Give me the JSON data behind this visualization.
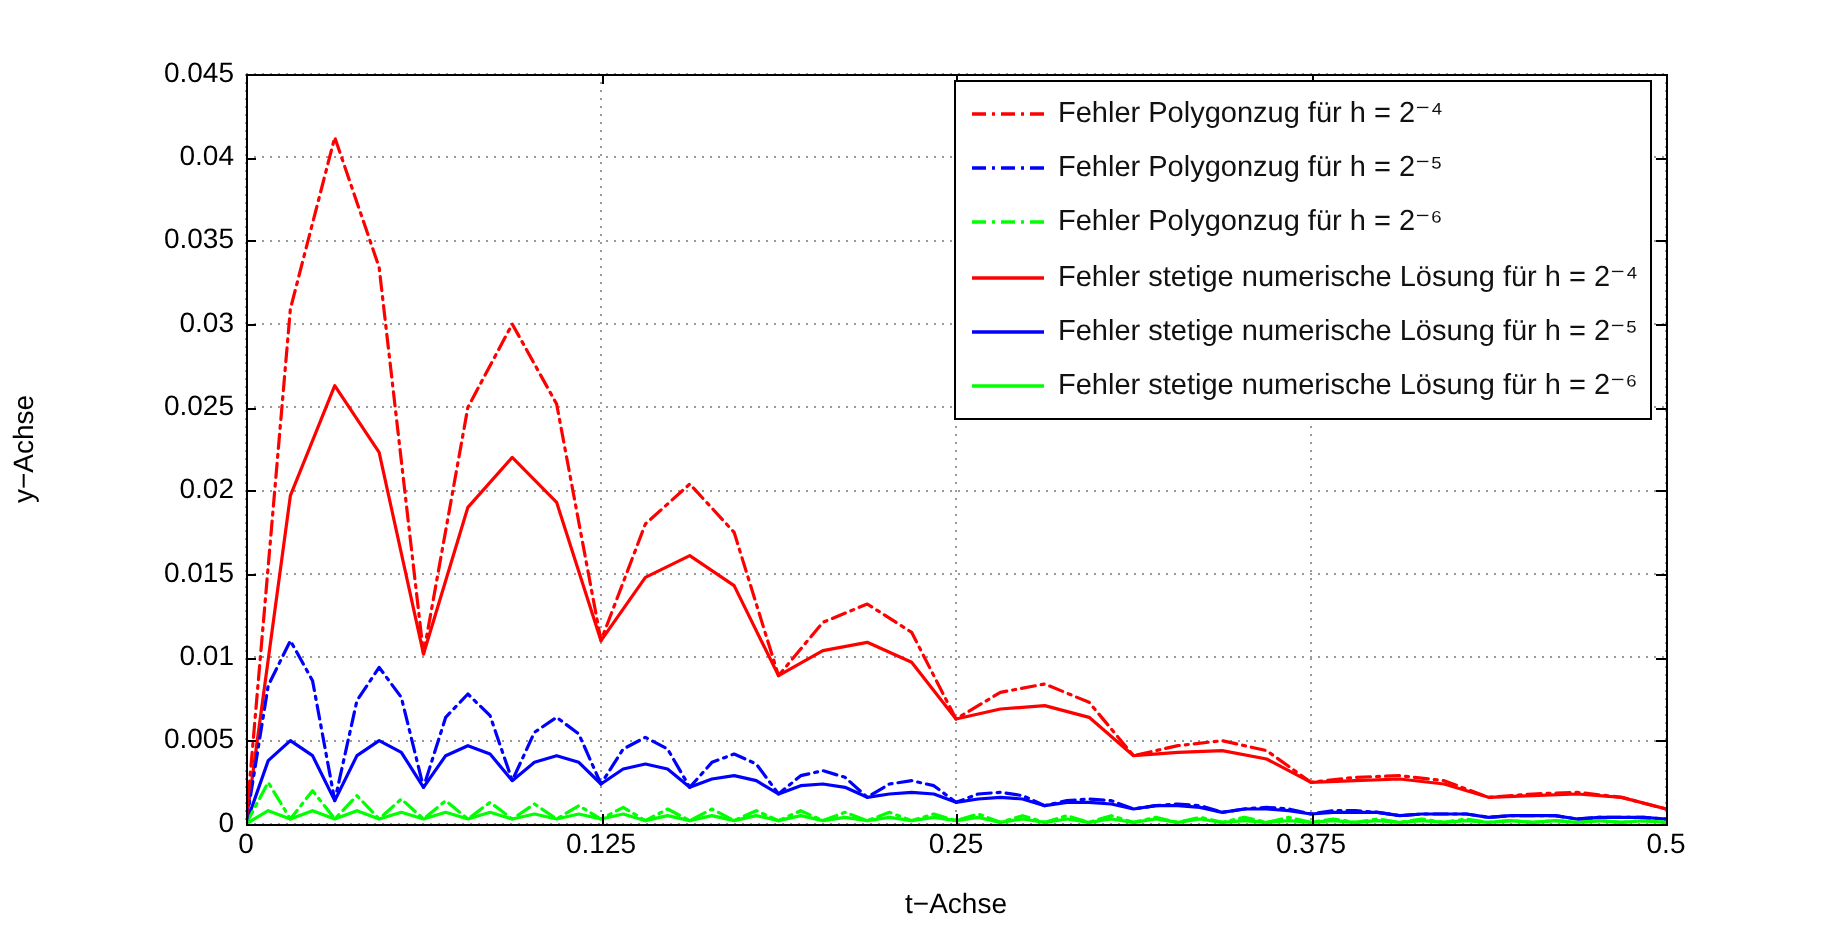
{
  "chart_data": {
    "type": "line",
    "xlabel": "t−Achse",
    "ylabel": "y−Achse",
    "xlim": [
      0,
      0.5
    ],
    "xticks": [
      0,
      0.125,
      0.25,
      0.375,
      0.5
    ],
    "ylim": [
      0,
      0.045
    ],
    "yticks": [
      0,
      0.005,
      0.01,
      0.015,
      0.02,
      0.025,
      0.03,
      0.035,
      0.04,
      0.045
    ],
    "grid": true,
    "legend": "top right",
    "marker": "none",
    "x": [
      0,
      0.0078125,
      0.015625,
      0.0234375,
      0.03125,
      0.0390625,
      0.046875,
      0.0546875,
      0.0625,
      0.0703125,
      0.078125,
      0.0859375,
      0.09375,
      0.1015625,
      0.109375,
      0.1171875,
      0.125,
      0.1328125,
      0.140625,
      0.1484375,
      0.15625,
      0.1640625,
      0.171875,
      0.1796875,
      0.1875,
      0.1953125,
      0.203125,
      0.2109375,
      0.21875,
      0.2265625,
      0.234375,
      0.2421875,
      0.25,
      0.2578125,
      0.265625,
      0.2734375,
      0.28125,
      0.2890625,
      0.296875,
      0.3046875,
      0.3125,
      0.3203125,
      0.328125,
      0.3359375,
      0.34375,
      0.3515625,
      0.359375,
      0.3671875,
      0.375,
      0.3828125,
      0.390625,
      0.3984375,
      0.40625,
      0.4140625,
      0.421875,
      0.4296875,
      0.4375,
      0.4453125,
      0.453125,
      0.4609375,
      0.46875,
      0.4765625,
      0.484375,
      0.4921875,
      0.5
    ],
    "series": [
      {
        "name": "Fehler Polygonzug für h = 2⁻⁴",
        "color": "#ff0000",
        "line_style": "dashdot",
        "x": [
          0,
          0.015625,
          0.03125,
          0.046875,
          0.0625,
          0.078125,
          0.09375,
          0.109375,
          0.125,
          0.140625,
          0.15625,
          0.171875,
          0.1875,
          0.203125,
          0.21875,
          0.234375,
          0.25,
          0.265625,
          0.28125,
          0.296875,
          0.3125,
          0.328125,
          0.34375,
          0.359375,
          0.375,
          0.390625,
          0.40625,
          0.421875,
          0.4375,
          0.453125,
          0.46875,
          0.484375,
          0.5
        ],
        "values": [
          0,
          0.0309,
          0.0412,
          0.0334,
          0.0102,
          0.025,
          0.03,
          0.0252,
          0.011,
          0.018,
          0.0204,
          0.0175,
          0.0089,
          0.0121,
          0.0132,
          0.0115,
          0.0063,
          0.0079,
          0.0084,
          0.0073,
          0.0041,
          0.0047,
          0.005,
          0.0044,
          0.0025,
          0.0028,
          0.0029,
          0.0026,
          0.0016,
          0.0018,
          0.0019,
          0.0016,
          0.0009
        ]
      },
      {
        "name": "Fehler Polygonzug für h = 2⁻⁵",
        "color": "#0000ff",
        "line_style": "dashdot",
        "values": [
          0,
          0.0083,
          0.011,
          0.0086,
          0.0014,
          0.0074,
          0.0094,
          0.0076,
          0.0022,
          0.0064,
          0.0078,
          0.0065,
          0.0026,
          0.0055,
          0.0064,
          0.0054,
          0.0024,
          0.0045,
          0.0052,
          0.0045,
          0.0022,
          0.0037,
          0.0042,
          0.0036,
          0.0018,
          0.0029,
          0.0032,
          0.0028,
          0.0016,
          0.0024,
          0.0026,
          0.0023,
          0.0013,
          0.0018,
          0.0019,
          0.0017,
          0.0011,
          0.0014,
          0.0015,
          0.0014,
          0.0009,
          0.0011,
          0.0012,
          0.0011,
          0.0007,
          0.0009,
          0.001,
          0.0009,
          0.0006,
          0.0008,
          0.0008,
          0.0007,
          0.0005,
          0.0006,
          0.0006,
          0.0006,
          0.0004,
          0.0005,
          0.0005,
          0.0005,
          0.0003,
          0.0004,
          0.0004,
          0.0004,
          0.0003
        ]
      },
      {
        "name": "Fehler Polygonzug für h = 2⁻⁶",
        "color": "#00ff00",
        "line_style": "dashdot",
        "values": [
          0,
          0.0025,
          0.0003,
          0.002,
          0.0003,
          0.0017,
          0.0003,
          0.0015,
          0.0003,
          0.0014,
          0.0003,
          0.0013,
          0.0003,
          0.0012,
          0.0003,
          0.0011,
          0.0003,
          0.001,
          0.0002,
          0.0009,
          0.0002,
          0.0009,
          0.0002,
          0.0008,
          0.0002,
          0.0008,
          0.0002,
          0.0007,
          0.0002,
          0.0007,
          0.0002,
          0.0006,
          0.0002,
          0.0006,
          0.0001,
          0.0005,
          0.0001,
          0.0005,
          0.0001,
          0.0005,
          0.0001,
          0.0004,
          0.0001,
          0.0004,
          0.0001,
          0.0004,
          0.0001,
          0.0004,
          0.0001,
          0.0003,
          0.0001,
          0.0003,
          0.0001,
          0.0003,
          0.0001,
          0.0003,
          0.0001,
          0.0002,
          0.0001,
          0.0002,
          0.0001,
          0.0002,
          0.0001,
          0.0002,
          0.0001
        ]
      },
      {
        "name": "Fehler stetige numerische Lösung für h = 2⁻⁴",
        "color": "#ff0000",
        "line_style": "solid",
        "x": [
          0,
          0.015625,
          0.03125,
          0.046875,
          0.0625,
          0.078125,
          0.09375,
          0.109375,
          0.125,
          0.140625,
          0.15625,
          0.171875,
          0.1875,
          0.203125,
          0.21875,
          0.234375,
          0.25,
          0.265625,
          0.28125,
          0.296875,
          0.3125,
          0.328125,
          0.34375,
          0.359375,
          0.375,
          0.390625,
          0.40625,
          0.421875,
          0.4375,
          0.453125,
          0.46875,
          0.484375,
          0.5
        ],
        "values": [
          0,
          0.0197,
          0.0263,
          0.0223,
          0.0102,
          0.019,
          0.022,
          0.0193,
          0.011,
          0.0148,
          0.0161,
          0.0143,
          0.0089,
          0.0104,
          0.0109,
          0.0097,
          0.0063,
          0.0069,
          0.0071,
          0.0064,
          0.0041,
          0.0043,
          0.0044,
          0.0039,
          0.0025,
          0.0026,
          0.0027,
          0.0024,
          0.0016,
          0.0017,
          0.0018,
          0.0016,
          0.0009
        ]
      },
      {
        "name": "Fehler stetige numerische Lösung für h = 2⁻⁵",
        "color": "#0000ff",
        "line_style": "solid",
        "values": [
          0,
          0.0038,
          0.005,
          0.0041,
          0.0014,
          0.0041,
          0.005,
          0.0043,
          0.0022,
          0.0041,
          0.0047,
          0.0042,
          0.0026,
          0.0037,
          0.0041,
          0.0037,
          0.0024,
          0.0033,
          0.0036,
          0.0033,
          0.0022,
          0.0027,
          0.0029,
          0.0026,
          0.0018,
          0.0023,
          0.0024,
          0.0022,
          0.0016,
          0.0018,
          0.0019,
          0.0018,
          0.0013,
          0.0015,
          0.0016,
          0.0015,
          0.0011,
          0.0013,
          0.0013,
          0.0012,
          0.0009,
          0.0011,
          0.0011,
          0.001,
          0.0007,
          0.0009,
          0.0009,
          0.0008,
          0.0006,
          0.0007,
          0.0007,
          0.0007,
          0.0005,
          0.0006,
          0.0006,
          0.0006,
          0.0004,
          0.0005,
          0.0005,
          0.0005,
          0.0003,
          0.0004,
          0.0004,
          0.0004,
          0.0003
        ]
      },
      {
        "name": "Fehler stetige numerische Lösung für h = 2⁻⁶",
        "color": "#00ff00",
        "line_style": "solid",
        "values": [
          0,
          0.0008,
          0.0003,
          0.0008,
          0.0003,
          0.0008,
          0.0003,
          0.0007,
          0.0003,
          0.0007,
          0.0003,
          0.0007,
          0.0003,
          0.0006,
          0.0003,
          0.0006,
          0.0003,
          0.0006,
          0.0002,
          0.0005,
          0.0002,
          0.0005,
          0.0002,
          0.0005,
          0.0002,
          0.0005,
          0.0002,
          0.0004,
          0.0002,
          0.0004,
          0.0002,
          0.0004,
          0.0002,
          0.0004,
          0.0001,
          0.0003,
          0.0001,
          0.0003,
          0.0001,
          0.0003,
          0.0001,
          0.0003,
          0.0001,
          0.0003,
          0.0001,
          0.0002,
          0.0001,
          0.0002,
          0.0001,
          0.0002,
          0.0001,
          0.0002,
          0.0001,
          0.0002,
          0.0001,
          0.0002,
          0.0001,
          0.0002,
          0.0001,
          0.0002,
          0.0001,
          0.0002,
          0.0001,
          0.0002,
          0.0001
        ]
      }
    ]
  }
}
